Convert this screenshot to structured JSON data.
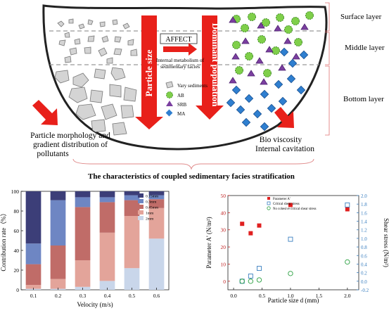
{
  "diagram": {
    "layers": [
      "Surface layer",
      "Middle layer",
      "Bottom layer"
    ],
    "affect_label": "AFFECT",
    "center_text": [
      "Internal metabolism of",
      "sedimentary facies"
    ],
    "arrow_left_label": "Particle size",
    "arrow_right_label": "Dominant population",
    "legend": [
      {
        "label": "Vary sediments",
        "shape": "polygon",
        "color": "#cfcfcf"
      },
      {
        "label": "AB",
        "shape": "circle",
        "color": "#7fcf4a"
      },
      {
        "label": "SRB",
        "shape": "triangle",
        "color": "#7b3fa0"
      },
      {
        "label": "MA",
        "shape": "square",
        "color": "#2f7fd0"
      }
    ],
    "left_caption": [
      "Particle morphology and",
      "gradient distribution of",
      "pollutants"
    ],
    "right_caption": [
      "Bio viscosity",
      "Internal cavitation"
    ],
    "title": "The characteristics of coupled sedimentary facies stratification",
    "colors": {
      "arrow_red": "#e8201a",
      "layer_bracket": "#e07070",
      "brace": "#e08a8a"
    }
  },
  "chart_data": [
    {
      "type": "bar",
      "stacked": true,
      "categories": [
        "0.1",
        "0.2",
        "0.3",
        "0.4",
        "0.5",
        "0.6"
      ],
      "xlabel": "Velocity (m/s)",
      "ylabel": "Contribution rate（%）",
      "ylim": [
        0,
        100
      ],
      "yticks": [
        0,
        20,
        40,
        60,
        80,
        100
      ],
      "series": [
        {
          "name": "2mm",
          "color": "#c9d6ea",
          "values": [
            1,
            1,
            3,
            9,
            22,
            52
          ]
        },
        {
          "name": "1mm",
          "color": "#e3a49a",
          "values": [
            4,
            10,
            27,
            49,
            53,
            31
          ]
        },
        {
          "name": "0.45mm",
          "color": "#c06c68",
          "values": [
            21,
            34,
            54,
            31,
            16,
            9
          ]
        },
        {
          "name": "0.3mm",
          "color": "#6e86c3",
          "values": [
            21,
            46,
            10,
            5,
            5,
            4
          ]
        },
        {
          "name": "0.15mm",
          "color": "#3c3e78",
          "values": [
            53,
            9,
            6,
            6,
            4,
            4
          ]
        }
      ]
    },
    {
      "type": "scatter",
      "xlabel": "Particle size d (mm)",
      "ylabel_left": "Parameter A' (N/m²)",
      "ylabel_right": "Shear stress (N/m²)",
      "xlim": [
        -0.1,
        2.2
      ],
      "xticks": [
        "0.0",
        "0.5",
        "1.0",
        "1.5",
        "2.0"
      ],
      "ylim_left": [
        -5,
        50
      ],
      "yticks_left": [
        0,
        10,
        20,
        30,
        40,
        50
      ],
      "ylim_right": [
        -0.2,
        2.0
      ],
      "yticks_right": [
        "-0.2",
        "0.0",
        "0.2",
        "0.4",
        "0.6",
        "0.8",
        "1.0",
        "1.2",
        "1.4",
        "1.6",
        "1.8",
        "2.0"
      ],
      "series": [
        {
          "name": "Parameter A'",
          "axis": "left",
          "marker": "filled-square",
          "color": "#e02020",
          "points": [
            [
              0.15,
              33.5
            ],
            [
              0.3,
              28
            ],
            [
              0.45,
              32.5
            ],
            [
              1.0,
              44.5
            ],
            [
              2.0,
              42
            ]
          ]
        },
        {
          "name": "Critical shear stress",
          "axis": "right",
          "marker": "open-square",
          "color": "#3a7fc0",
          "points": [
            [
              0.15,
              0.0
            ],
            [
              0.3,
              0.12
            ],
            [
              0.45,
              0.3
            ],
            [
              1.0,
              0.98
            ],
            [
              2.0,
              1.78
            ]
          ]
        },
        {
          "name": "No cohesive critical shear stress",
          "axis": "right",
          "marker": "open-circle",
          "color": "#2aa040",
          "points": [
            [
              0.15,
              0.0
            ],
            [
              0.3,
              0.0
            ],
            [
              0.45,
              0.03
            ],
            [
              1.0,
              0.18
            ],
            [
              2.0,
              0.45
            ]
          ]
        }
      ]
    }
  ]
}
